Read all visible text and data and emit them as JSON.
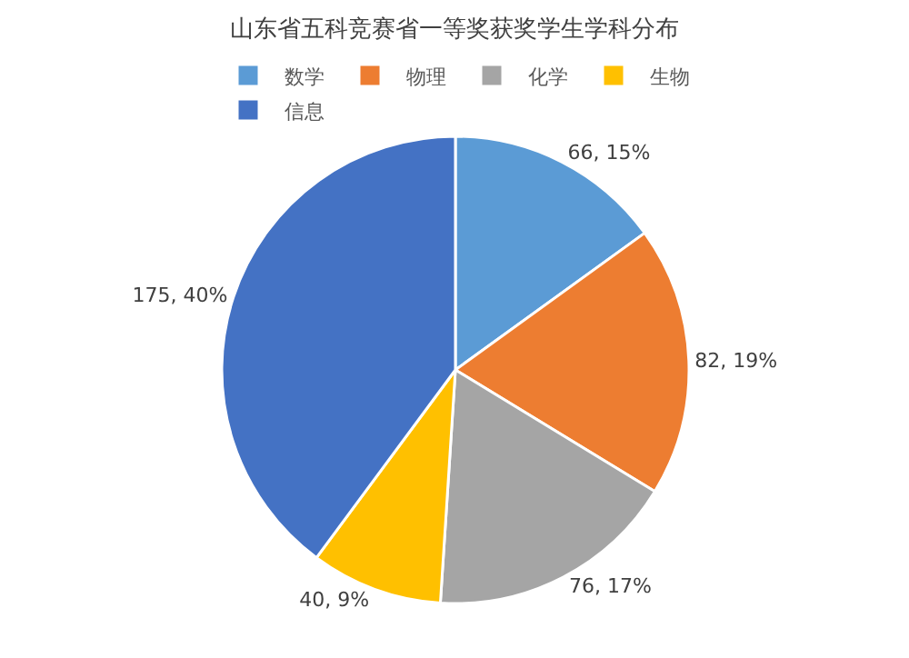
{
  "chart_data": {
    "type": "pie",
    "title": "山东省五科竞赛省一等奖获奖学生学科分布",
    "categories": [
      "数学",
      "物理",
      "化学",
      "生物",
      "信息"
    ],
    "values": [
      66,
      82,
      76,
      40,
      175
    ],
    "colors": [
      "#5b9bd5",
      "#ed7d31",
      "#a5a5a5",
      "#ffc000",
      "#4472c4"
    ],
    "value_labels": [
      "66, 15%",
      "82, 19%",
      "76, 17%",
      "40, 9%",
      "175, 40%"
    ],
    "legend": "top"
  }
}
